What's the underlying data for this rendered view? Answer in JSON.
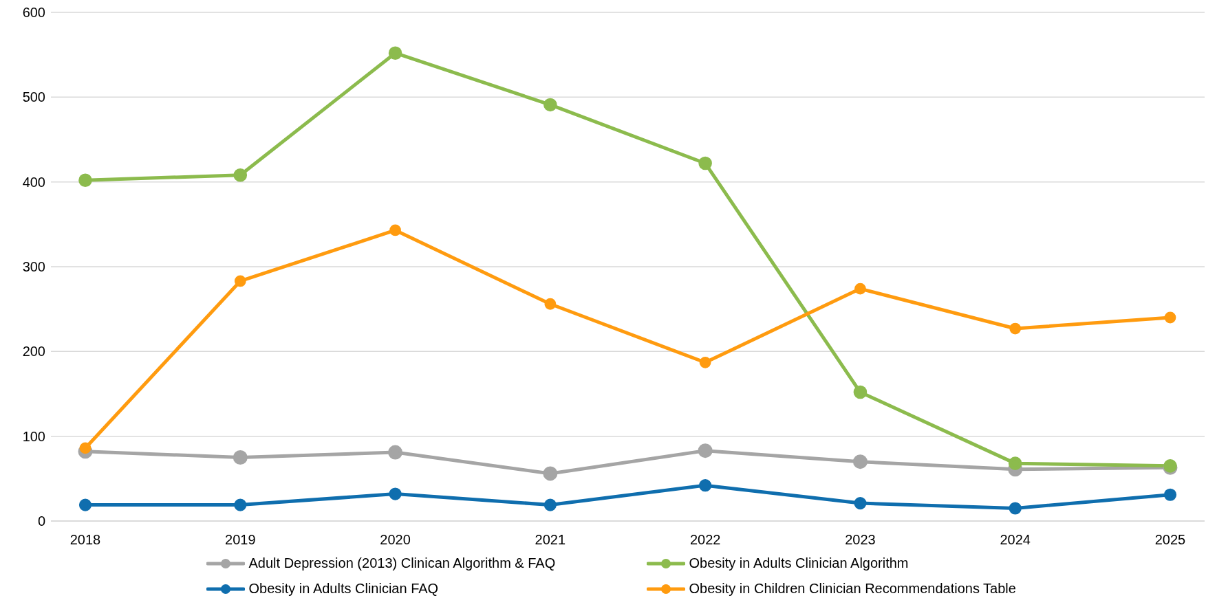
{
  "chart_data": {
    "type": "line",
    "categories": [
      "2018",
      "2019",
      "2020",
      "2021",
      "2022",
      "2023",
      "2024",
      "2025"
    ],
    "series": [
      {
        "name": "Adult Depression (2013) Clinican Algorithm & FAQ",
        "color": "#a5a5a5",
        "values": [
          82,
          75,
          81,
          56,
          83,
          70,
          61,
          63
        ]
      },
      {
        "name": "Obesity in Adults Clinician Algorithm",
        "color": "#8cbb4d",
        "values": [
          402,
          408,
          552,
          491,
          422,
          152,
          68,
          65
        ]
      },
      {
        "name": "Obesity in Adults Clinician FAQ",
        "color": "#0f6eae",
        "values": [
          19,
          19,
          32,
          19,
          42,
          21,
          15,
          31
        ]
      },
      {
        "name": "Obesity in Children Clinician Recommendations Table",
        "color": "#ff9b0f",
        "values": [
          86,
          283,
          343,
          256,
          187,
          274,
          227,
          240
        ]
      }
    ],
    "ylim": [
      0,
      600
    ],
    "yticks": [
      0,
      100,
      200,
      300,
      400,
      500,
      600
    ],
    "grid": "y",
    "legend": "bottom",
    "marker": "circle",
    "line_style": "solid"
  }
}
